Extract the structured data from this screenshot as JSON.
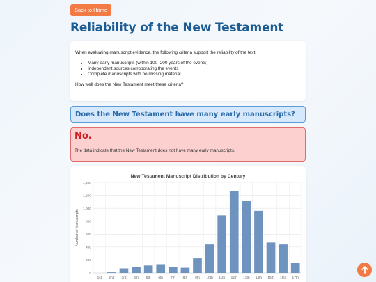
{
  "nav": {
    "back_label": "Back to Home"
  },
  "page": {
    "title": "Reliability of the New Testament"
  },
  "intro": {
    "lead": "When evaluating manuscript evidence, the following criteria support the reliability of the text:",
    "criteria": [
      "Many early manuscripts (within 100–200 years of the events)",
      "Independent sources corroborating the events",
      "Complete manuscripts with no missing material"
    ],
    "question": "How well does the New Testament meet these criteria?"
  },
  "question_box": {
    "text": "Does the New Testament have many early manuscripts?"
  },
  "answer_box": {
    "title": "No.",
    "text": "The data indicate that the New Testament does not have many early manuscripts."
  },
  "colors": {
    "accent": "#f47a45",
    "title": "#1d5b93",
    "bar": "#6e93bf",
    "answer_red": "#cc1f1f"
  },
  "scroll_top": {
    "icon": "arrow-up-icon"
  },
  "chart_data": {
    "type": "bar",
    "title": "New Testament Manuscript Distribution by Century",
    "xlabel": "",
    "ylabel": "Number of Manuscripts",
    "categories": [
      "1st",
      "2nd",
      "3rd",
      "4th",
      "5th",
      "6th",
      "7th",
      "8th",
      "9th",
      "10th",
      "11th",
      "12th",
      "13th",
      "14th",
      "15th",
      "16th",
      "17th"
    ],
    "values": [
      0,
      10,
      70,
      95,
      115,
      135,
      90,
      80,
      225,
      440,
      890,
      1270,
      1120,
      960,
      470,
      440,
      160
    ],
    "ylim": [
      0,
      1400
    ],
    "yticks": [
      "0",
      "200",
      "400",
      "600",
      "800",
      "1,000",
      "1,200",
      "1,400"
    ],
    "grid": true
  }
}
